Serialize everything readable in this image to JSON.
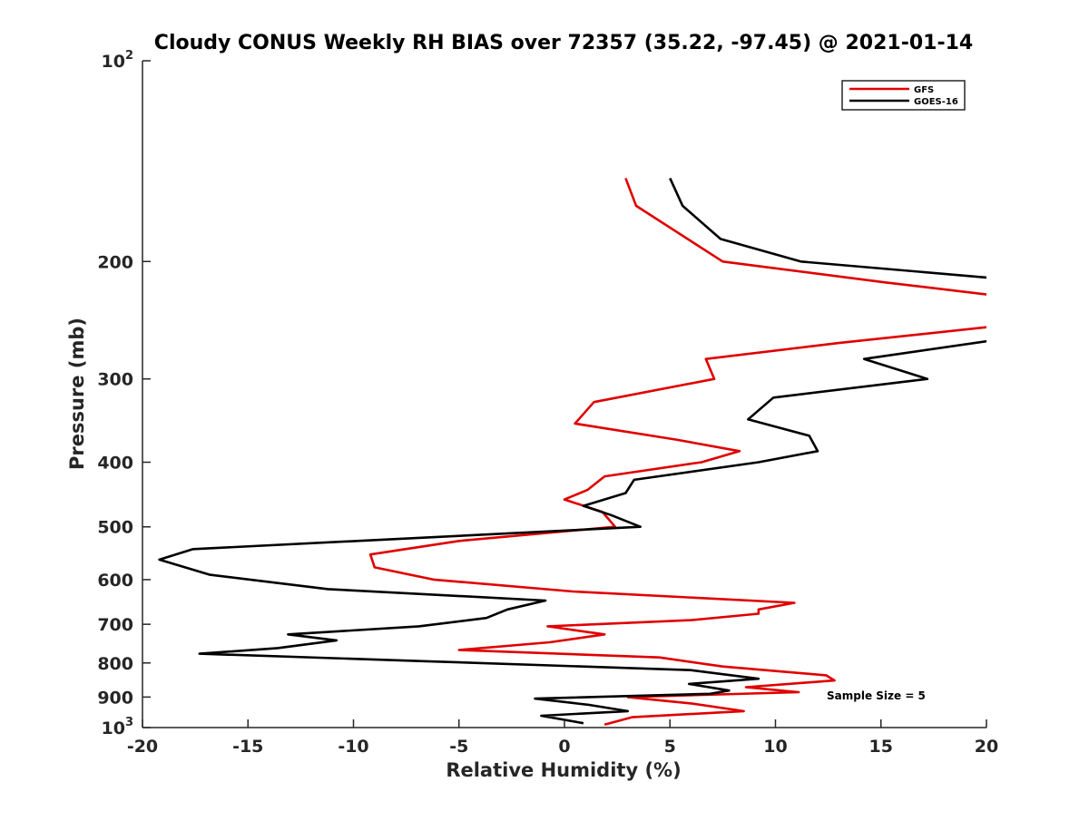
{
  "chart_data": {
    "type": "line",
    "title": "Cloudy CONUS Weekly RH BIAS over 72357 (35.22, -97.45) @ 2021-01-14",
    "xlabel": "Relative Humidity (%)",
    "ylabel": "Pressure (mb)",
    "xlim": [
      -20,
      20
    ],
    "ylim": [
      100,
      1000
    ],
    "y_scale": "log",
    "y_reversed": true,
    "x_ticks": [
      -20,
      -15,
      -10,
      -5,
      0,
      5,
      10,
      15,
      20
    ],
    "x_tick_labels": [
      "-20",
      "-15",
      "-10",
      "-5",
      "0",
      "5",
      "10",
      "15",
      "20"
    ],
    "y_ticks": [
      100,
      200,
      300,
      400,
      500,
      600,
      700,
      800,
      900,
      1000
    ],
    "y_tick_labels": [
      {
        "base": "10",
        "exp": "2"
      },
      {
        "base": "200",
        "exp": ""
      },
      {
        "base": "300",
        "exp": ""
      },
      {
        "base": "400",
        "exp": ""
      },
      {
        "base": "500",
        "exp": ""
      },
      {
        "base": "600",
        "exp": ""
      },
      {
        "base": "700",
        "exp": ""
      },
      {
        "base": "800",
        "exp": ""
      },
      {
        "base": "900",
        "exp": ""
      },
      {
        "base": "10",
        "exp": "3"
      }
    ],
    "grid": false,
    "legend_position": "top-right",
    "annotation": "Sample Size = 5",
    "series": [
      {
        "name": "GFS",
        "color": "#e00000",
        "points": [
          {
            "x": 2.9,
            "p": 150
          },
          {
            "x": 3.4,
            "p": 165
          },
          {
            "x": 7.5,
            "p": 200
          },
          {
            "x": 15.2,
            "p": 215
          },
          {
            "x": 20.5,
            "p": 225
          },
          {
            "x": 20.5,
            "p": 250
          },
          {
            "x": 13.0,
            "p": 265
          },
          {
            "x": 6.7,
            "p": 280
          },
          {
            "x": 7.1,
            "p": 300
          },
          {
            "x": 1.4,
            "p": 325
          },
          {
            "x": 0.5,
            "p": 350
          },
          {
            "x": 5.3,
            "p": 370
          },
          {
            "x": 8.3,
            "p": 385
          },
          {
            "x": 6.5,
            "p": 400
          },
          {
            "x": 1.9,
            "p": 420
          },
          {
            "x": 1.1,
            "p": 440
          },
          {
            "x": 0.0,
            "p": 455
          },
          {
            "x": 1.8,
            "p": 475
          },
          {
            "x": 2.4,
            "p": 500
          },
          {
            "x": -5.0,
            "p": 525
          },
          {
            "x": -9.2,
            "p": 550
          },
          {
            "x": -9.0,
            "p": 575
          },
          {
            "x": -6.2,
            "p": 600
          },
          {
            "x": 0.4,
            "p": 625
          },
          {
            "x": 10.9,
            "p": 650
          },
          {
            "x": 9.2,
            "p": 665
          },
          {
            "x": 9.2,
            "p": 675
          },
          {
            "x": 6.0,
            "p": 690
          },
          {
            "x": -0.8,
            "p": 705
          },
          {
            "x": 1.9,
            "p": 725
          },
          {
            "x": -0.7,
            "p": 745
          },
          {
            "x": -5.0,
            "p": 765
          },
          {
            "x": 4.5,
            "p": 785
          },
          {
            "x": 7.5,
            "p": 810
          },
          {
            "x": 12.4,
            "p": 835
          },
          {
            "x": 12.8,
            "p": 850
          },
          {
            "x": 8.6,
            "p": 870
          },
          {
            "x": 11.1,
            "p": 885
          },
          {
            "x": 3.0,
            "p": 900
          },
          {
            "x": 6.0,
            "p": 920
          },
          {
            "x": 8.5,
            "p": 945
          },
          {
            "x": 3.2,
            "p": 965
          },
          {
            "x": 1.9,
            "p": 990
          }
        ]
      },
      {
        "name": "GOES-16",
        "color": "#000000",
        "points": [
          {
            "x": 5.0,
            "p": 150
          },
          {
            "x": 5.6,
            "p": 165
          },
          {
            "x": 7.4,
            "p": 185
          },
          {
            "x": 11.2,
            "p": 200
          },
          {
            "x": 20.5,
            "p": 212
          },
          {
            "x": 20.5,
            "p": 262
          },
          {
            "x": 14.2,
            "p": 280
          },
          {
            "x": 17.2,
            "p": 300
          },
          {
            "x": 9.9,
            "p": 320
          },
          {
            "x": 8.7,
            "p": 345
          },
          {
            "x": 11.6,
            "p": 365
          },
          {
            "x": 12.0,
            "p": 385
          },
          {
            "x": 9.2,
            "p": 400
          },
          {
            "x": 3.3,
            "p": 425
          },
          {
            "x": 2.9,
            "p": 445
          },
          {
            "x": 0.9,
            "p": 465
          },
          {
            "x": 2.2,
            "p": 480
          },
          {
            "x": 3.6,
            "p": 500
          },
          {
            "x": -17.6,
            "p": 540
          },
          {
            "x": -19.2,
            "p": 560
          },
          {
            "x": -16.8,
            "p": 590
          },
          {
            "x": -11.2,
            "p": 620
          },
          {
            "x": -0.9,
            "p": 645
          },
          {
            "x": -2.7,
            "p": 665
          },
          {
            "x": -3.7,
            "p": 685
          },
          {
            "x": -6.9,
            "p": 705
          },
          {
            "x": -13.1,
            "p": 725
          },
          {
            "x": -10.8,
            "p": 740
          },
          {
            "x": -13.6,
            "p": 760
          },
          {
            "x": -17.3,
            "p": 775
          },
          {
            "x": -6.7,
            "p": 795
          },
          {
            "x": 6.0,
            "p": 820
          },
          {
            "x": 9.2,
            "p": 845
          },
          {
            "x": 5.9,
            "p": 860
          },
          {
            "x": 7.8,
            "p": 880
          },
          {
            "x": 6.9,
            "p": 890
          },
          {
            "x": -1.4,
            "p": 905
          },
          {
            "x": 1.2,
            "p": 925
          },
          {
            "x": 3.0,
            "p": 945
          },
          {
            "x": -1.1,
            "p": 960
          },
          {
            "x": 0.9,
            "p": 985
          }
        ]
      }
    ]
  }
}
